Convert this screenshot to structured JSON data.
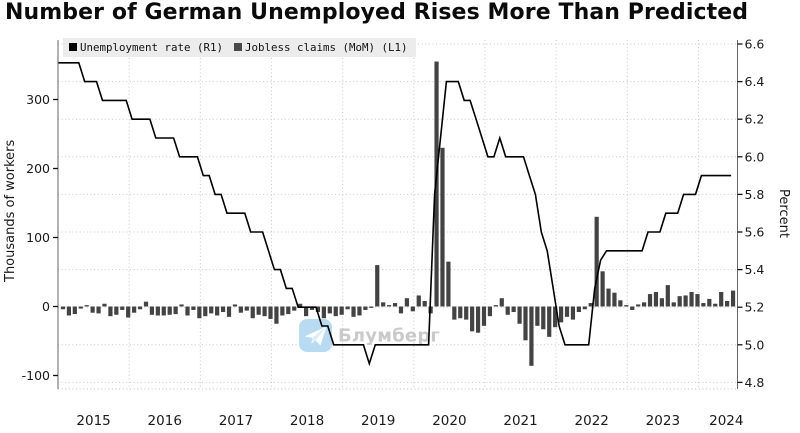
{
  "title": "Number of German Unemployed Rises More Than Predicted",
  "legend": {
    "items": [
      {
        "label": "Unemployment rate (R1)",
        "swatch": "#000000"
      },
      {
        "label": "Jobless claims (MoM) (L1)",
        "swatch": "#4a4a4a"
      }
    ]
  },
  "watermark": {
    "text": "Блумберг",
    "icon": "paper-plane-icon",
    "icon_color": "#b4d9f1",
    "text_color": "#c6c6c6"
  },
  "axes": {
    "left": {
      "title": "Thousands of workers",
      "tick_labels": [
        "300",
        "200",
        "100",
        "0",
        "-100"
      ],
      "tick_values": [
        300,
        200,
        100,
        0,
        -100
      ]
    },
    "right": {
      "title": "Percent",
      "tick_labels": [
        "6.6",
        "6.4",
        "6.2",
        "6.0",
        "5.8",
        "5.6",
        "5.4",
        "5.2",
        "5.0",
        "4.8"
      ],
      "tick_values": [
        6.6,
        6.4,
        6.2,
        6.0,
        5.8,
        5.6,
        5.4,
        5.2,
        5.0,
        4.8
      ]
    },
    "x": {
      "tick_labels": [
        "2015",
        "2016",
        "2017",
        "2018",
        "2019",
        "2020",
        "2021",
        "2022",
        "2023",
        "2024"
      ]
    }
  },
  "chart_data": {
    "type": "bar+line",
    "title": "Number of German Unemployed Rises More Than Predicted",
    "x_start": "2015-01",
    "x_end": "2024-06",
    "months": 114,
    "grid": "dotted, horizontal every 0.2 on right axis, vertical at each January",
    "legend_position": "top-left",
    "left_ylim": [
      -120,
      386
    ],
    "right_ylim": [
      4.77,
      6.62
    ],
    "series": [
      {
        "name": "Jobless claims (MoM) (L1)",
        "type": "bar",
        "axis": "left",
        "unit": "thousands of workers",
        "color": "#434343",
        "values": [
          -4,
          -13,
          -11,
          -3,
          2,
          -9,
          -10,
          4,
          -14,
          -12,
          -5,
          -16,
          -9,
          -4,
          7,
          -12,
          -13,
          -13,
          -12,
          -11,
          3,
          -13,
          -5,
          -17,
          -14,
          -10,
          -13,
          -8,
          -15,
          3,
          -9,
          -6,
          -17,
          -12,
          -14,
          -18,
          -25,
          -13,
          -11,
          -6,
          4,
          -14,
          -5,
          -8,
          -17,
          -10,
          -14,
          -12,
          -4,
          -15,
          -13,
          -5,
          -2,
          60,
          6,
          2,
          5,
          -10,
          12,
          -7,
          16,
          8,
          -10,
          355,
          230,
          65,
          -19,
          -17,
          -19,
          -36,
          -38,
          -28,
          -14,
          2,
          12,
          -12,
          -8,
          -25,
          -49,
          -86,
          -28,
          -33,
          -44,
          -30,
          -23,
          -15,
          -19,
          -8,
          -4,
          5,
          130,
          51,
          26,
          20,
          9,
          2,
          -5,
          3,
          6,
          18,
          21,
          12,
          31,
          6,
          15,
          16,
          21,
          18,
          5,
          11,
          4,
          21,
          8,
          23
        ]
      },
      {
        "name": "Unemployment rate (R1)",
        "type": "line",
        "axis": "right",
        "unit": "percent",
        "color": "#000000",
        "values": [
          6.5,
          6.5,
          6.5,
          6.5,
          6.4,
          6.4,
          6.4,
          6.3,
          6.3,
          6.3,
          6.3,
          6.3,
          6.2,
          6.2,
          6.2,
          6.2,
          6.1,
          6.1,
          6.1,
          6.1,
          6.0,
          6.0,
          6.0,
          6.0,
          5.9,
          5.9,
          5.8,
          5.8,
          5.7,
          5.7,
          5.7,
          5.7,
          5.6,
          5.6,
          5.6,
          5.5,
          5.4,
          5.4,
          5.3,
          5.3,
          5.2,
          5.2,
          5.2,
          5.2,
          5.1,
          5.1,
          5.0,
          5.0,
          5.0,
          5.0,
          5.0,
          5.0,
          4.9,
          5.0,
          5.0,
          5.0,
          5.0,
          5.0,
          5.0,
          5.0,
          5.0,
          5.0,
          5.0,
          5.8,
          6.1,
          6.4,
          6.4,
          6.4,
          6.3,
          6.3,
          6.2,
          6.1,
          6.0,
          6.0,
          6.1,
          6.0,
          6.0,
          6.0,
          6.0,
          5.9,
          5.8,
          5.6,
          5.5,
          5.3,
          5.1,
          5.0,
          5.0,
          5.0,
          5.0,
          5.0,
          5.3,
          5.45,
          5.5,
          5.5,
          5.5,
          5.5,
          5.5,
          5.5,
          5.5,
          5.6,
          5.6,
          5.6,
          5.7,
          5.7,
          5.7,
          5.8,
          5.8,
          5.8,
          5.9,
          5.9,
          5.9,
          5.9,
          5.9,
          5.9
        ]
      }
    ]
  }
}
